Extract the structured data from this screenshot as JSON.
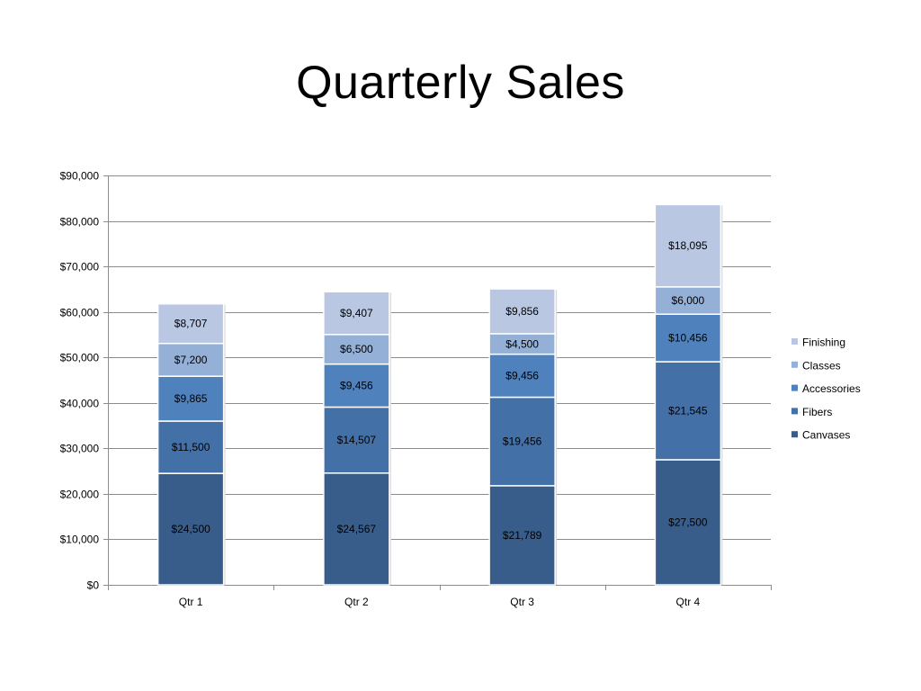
{
  "slide": {
    "title": "Quarterly Sales"
  },
  "chart_data": {
    "type": "bar",
    "stacked": true,
    "title": "",
    "xlabel": "",
    "ylabel": "",
    "categories": [
      "Qtr 1",
      "Qtr 2",
      "Qtr 3",
      "Qtr 4"
    ],
    "ylim": [
      0,
      90000
    ],
    "y_ticks": [
      0,
      10000,
      20000,
      30000,
      40000,
      50000,
      60000,
      70000,
      80000,
      90000
    ],
    "y_tick_labels": [
      "$0",
      "$10,000",
      "$20,000",
      "$30,000",
      "$40,000",
      "$50,000",
      "$60,000",
      "$70,000",
      "$80,000",
      "$90,000"
    ],
    "grid": true,
    "legend_position": "right",
    "series": [
      {
        "name": "Canvases",
        "color": "#385D8A",
        "values": [
          24500,
          24567,
          21789,
          27500
        ],
        "labels": [
          "$24,500",
          "$24,567",
          "$21,789",
          "$27,500"
        ]
      },
      {
        "name": "Fibers",
        "color": "#4470A8",
        "values": [
          11500,
          14507,
          19456,
          21545
        ],
        "labels": [
          "$11,500",
          "$14,507",
          "$19,456",
          "$21,545"
        ]
      },
      {
        "name": "Accessories",
        "color": "#4F81BD",
        "values": [
          9865,
          9456,
          9456,
          10456
        ],
        "labels": [
          "$9,865",
          "$9,456",
          "$9,456",
          "$10,456"
        ]
      },
      {
        "name": "Classes",
        "color": "#95B0D6",
        "values": [
          7200,
          6500,
          4500,
          6000
        ],
        "labels": [
          "$7,200",
          "$6,500",
          "$4,500",
          "$6,000"
        ]
      },
      {
        "name": "Finishing",
        "color": "#B9C7E2",
        "values": [
          8707,
          9407,
          9856,
          18095
        ],
        "labels": [
          "$8,707",
          "$9,407",
          "$9,856",
          "$18,095"
        ]
      }
    ]
  }
}
